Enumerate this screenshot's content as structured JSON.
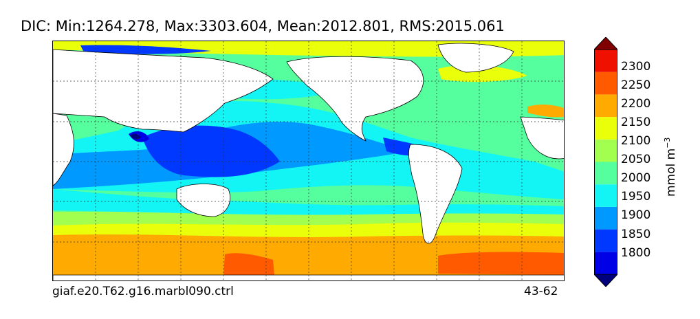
{
  "title": "DIC: Min:1264.278, Max:3303.604, Mean:2012.801, RMS:2015.061",
  "footer": {
    "case_name": "giaf.e20.T62.g16.marbl090.ctrl",
    "years": "43-62"
  },
  "colorbar": {
    "unit_label": "mmol m",
    "unit_exponent": "−3",
    "ticks": [
      "2300",
      "2250",
      "2200",
      "2150",
      "2100",
      "2050",
      "2000",
      "1950",
      "1900",
      "1850",
      "1800"
    ],
    "levels": [
      {
        "range": "<1800",
        "color": "#00007f"
      },
      {
        "range": "1800-1850",
        "color": "#0000e6"
      },
      {
        "range": "1850-1900",
        "color": "#0038ff"
      },
      {
        "range": "1900-1950",
        "color": "#0099ff"
      },
      {
        "range": "1950-2000",
        "color": "#13f5f5"
      },
      {
        "range": "2000-2050",
        "color": "#55ff9e"
      },
      {
        "range": "2050-2100",
        "color": "#a3ff4f"
      },
      {
        "range": "2100-2150",
        "color": "#eaff0a"
      },
      {
        "range": "2150-2200",
        "color": "#ffaa00"
      },
      {
        "range": "2200-2250",
        "color": "#ff5a00"
      },
      {
        "range": "2250-2300",
        "color": "#f01000"
      },
      {
        "range": ">2300",
        "color": "#800000"
      }
    ]
  },
  "colors": {
    "land": "#ffffff",
    "outline": "#000000"
  }
}
